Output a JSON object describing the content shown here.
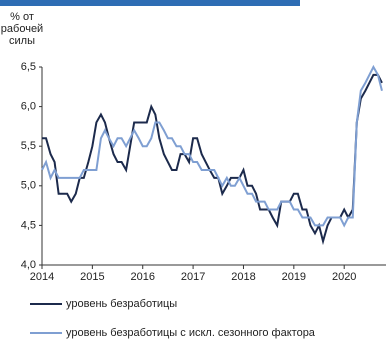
{
  "chart_data": {
    "type": "line",
    "y_label": [
      "% от",
      "рабочей",
      "силы"
    ],
    "x": [
      2014.0,
      2014.08,
      2014.17,
      2014.25,
      2014.33,
      2014.42,
      2014.5,
      2014.58,
      2014.67,
      2014.75,
      2014.83,
      2014.92,
      2015.0,
      2015.08,
      2015.17,
      2015.25,
      2015.33,
      2015.42,
      2015.5,
      2015.58,
      2015.67,
      2015.75,
      2015.83,
      2015.92,
      2016.0,
      2016.08,
      2016.17,
      2016.25,
      2016.33,
      2016.42,
      2016.5,
      2016.58,
      2016.67,
      2016.75,
      2016.83,
      2016.92,
      2017.0,
      2017.08,
      2017.17,
      2017.25,
      2017.33,
      2017.42,
      2017.5,
      2017.58,
      2017.67,
      2017.75,
      2017.83,
      2017.92,
      2018.0,
      2018.08,
      2018.17,
      2018.25,
      2018.33,
      2018.42,
      2018.5,
      2018.58,
      2018.67,
      2018.75,
      2018.83,
      2018.92,
      2019.0,
      2019.08,
      2019.17,
      2019.25,
      2019.33,
      2019.42,
      2019.5,
      2019.58,
      2019.67,
      2019.75,
      2019.83,
      2019.92,
      2020.0,
      2020.08,
      2020.17,
      2020.25,
      2020.33,
      2020.42,
      2020.5,
      2020.58,
      2020.67,
      2020.75
    ],
    "series": [
      {
        "name": "уровень безработицы",
        "color": "#1c2a4c",
        "values": [
          5.6,
          5.6,
          5.4,
          5.3,
          4.9,
          4.9,
          4.9,
          4.8,
          4.9,
          5.1,
          5.1,
          5.3,
          5.5,
          5.8,
          5.9,
          5.8,
          5.6,
          5.4,
          5.3,
          5.3,
          5.2,
          5.5,
          5.8,
          5.8,
          5.8,
          5.8,
          6.0,
          5.9,
          5.6,
          5.4,
          5.3,
          5.2,
          5.2,
          5.4,
          5.4,
          5.3,
          5.6,
          5.6,
          5.4,
          5.3,
          5.2,
          5.1,
          5.1,
          4.9,
          5.0,
          5.1,
          5.1,
          5.1,
          5.2,
          5.0,
          5.0,
          4.9,
          4.7,
          4.7,
          4.7,
          4.6,
          4.5,
          4.8,
          4.8,
          4.8,
          4.9,
          4.9,
          4.7,
          4.7,
          4.5,
          4.4,
          4.5,
          4.3,
          4.5,
          4.6,
          4.6,
          4.6,
          4.7,
          4.6,
          4.7,
          5.8,
          6.1,
          6.2,
          6.3,
          6.4,
          6.4,
          6.3
        ]
      },
      {
        "name": "уровень безработицы с искл. сезонного фактора",
        "color": "#7f9fd2",
        "values": [
          5.2,
          5.3,
          5.1,
          5.2,
          5.1,
          5.1,
          5.1,
          5.1,
          5.1,
          5.1,
          5.2,
          5.2,
          5.2,
          5.2,
          5.6,
          5.7,
          5.6,
          5.5,
          5.6,
          5.6,
          5.5,
          5.6,
          5.7,
          5.6,
          5.5,
          5.5,
          5.6,
          5.8,
          5.8,
          5.7,
          5.6,
          5.6,
          5.5,
          5.5,
          5.4,
          5.4,
          5.3,
          5.3,
          5.2,
          5.2,
          5.2,
          5.2,
          5.1,
          5.0,
          5.1,
          5.0,
          5.0,
          5.1,
          5.0,
          4.9,
          4.9,
          4.8,
          4.8,
          4.8,
          4.7,
          4.7,
          4.7,
          4.8,
          4.8,
          4.8,
          4.7,
          4.7,
          4.6,
          4.6,
          4.6,
          4.5,
          4.5,
          4.5,
          4.6,
          4.6,
          4.6,
          4.6,
          4.5,
          4.6,
          4.6,
          5.8,
          6.2,
          6.3,
          6.4,
          6.5,
          6.4,
          6.2
        ]
      }
    ],
    "xlim": [
      2014,
      2020.83
    ],
    "xticks": [
      2014,
      2015,
      2016,
      2017,
      2018,
      2019,
      2020
    ],
    "ylim": [
      4.0,
      6.5
    ],
    "yticks": [
      {
        "value": 4.0,
        "label": "4,0"
      },
      {
        "value": 4.5,
        "label": "4,5"
      },
      {
        "value": 5.0,
        "label": "5,0"
      },
      {
        "value": 5.5,
        "label": "5,5"
      },
      {
        "value": 6.0,
        "label": "6,0"
      },
      {
        "value": 6.5,
        "label": "6,5"
      }
    ],
    "grid": false
  }
}
